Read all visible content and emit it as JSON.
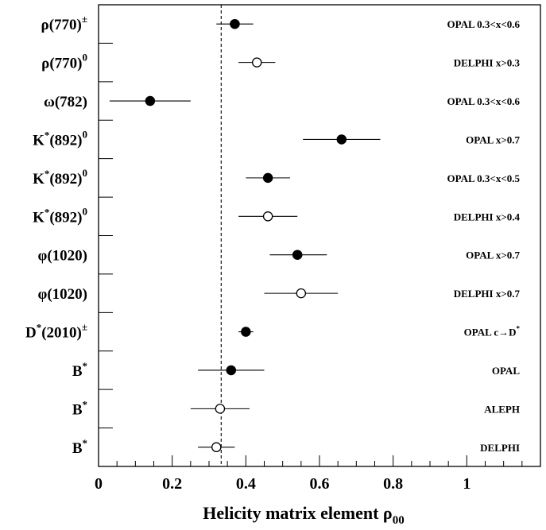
{
  "chart_data": {
    "type": "scatter",
    "orientation": "horizontal-error-bars",
    "xlabel": "Helicity matrix element ρ",
    "xlabel_subscript": "00",
    "xlim": [
      0,
      1.2
    ],
    "xticks": [
      0,
      0.2,
      0.4,
      0.6,
      0.8,
      1
    ],
    "xtick_labels": [
      "0",
      "0.2",
      "0.4",
      "0.6",
      "0.8",
      "1"
    ],
    "reference_line": {
      "x": 0.333,
      "style": "dashed"
    },
    "rows": [
      {
        "particle": "ρ(770)",
        "superscript": "±",
        "experiment": "OPAL 0.3<x<0.6",
        "value": 0.37,
        "err_lo": 0.32,
        "err_hi": 0.42,
        "marker": "filled"
      },
      {
        "particle": "ρ(770)",
        "superscript": "0",
        "experiment": "DELPHI x>0.3",
        "value": 0.43,
        "err_lo": 0.38,
        "err_hi": 0.48,
        "marker": "open"
      },
      {
        "particle": "ω(782)",
        "superscript": "",
        "experiment": "OPAL 0.3<x<0.6",
        "value": 0.14,
        "err_lo": 0.03,
        "err_hi": 0.25,
        "marker": "filled"
      },
      {
        "particle": "K",
        "mid": "*",
        "suffix": "(892)",
        "superscript": "0",
        "experiment": "OPAL x>0.7",
        "value": 0.66,
        "err_lo": 0.555,
        "err_hi": 0.765,
        "marker": "filled"
      },
      {
        "particle": "K",
        "mid": "*",
        "suffix": "(892)",
        "superscript": "0",
        "experiment": "OPAL 0.3<x<0.5",
        "value": 0.46,
        "err_lo": 0.4,
        "err_hi": 0.52,
        "marker": "filled"
      },
      {
        "particle": "K",
        "mid": "*",
        "suffix": "(892)",
        "superscript": "0",
        "experiment": "DELPHI x>0.4",
        "value": 0.46,
        "err_lo": 0.38,
        "err_hi": 0.54,
        "marker": "open"
      },
      {
        "particle": "φ(1020)",
        "superscript": "",
        "experiment": "OPAL x>0.7",
        "value": 0.54,
        "err_lo": 0.465,
        "err_hi": 0.62,
        "marker": "filled"
      },
      {
        "particle": "φ(1020)",
        "superscript": "",
        "experiment": "DELPHI x>0.7",
        "value": 0.55,
        "err_lo": 0.45,
        "err_hi": 0.65,
        "marker": "open"
      },
      {
        "particle": "D",
        "mid": "*",
        "suffix": "(2010)",
        "superscript": "±",
        "experiment": "OPAL c→D",
        "experiment_sup": "*",
        "value": 0.4,
        "err_lo": 0.38,
        "err_hi": 0.42,
        "marker": "filled"
      },
      {
        "particle": "B",
        "mid": "*",
        "suffix": "",
        "superscript": "",
        "experiment": "OPAL",
        "value": 0.36,
        "err_lo": 0.27,
        "err_hi": 0.45,
        "marker": "filled"
      },
      {
        "particle": "B",
        "mid": "*",
        "suffix": "",
        "superscript": "",
        "experiment": "ALEPH",
        "value": 0.33,
        "err_lo": 0.25,
        "err_hi": 0.41,
        "marker": "open"
      },
      {
        "particle": "B",
        "mid": "*",
        "suffix": "",
        "superscript": "",
        "experiment": "DELPHI",
        "value": 0.32,
        "err_lo": 0.27,
        "err_hi": 0.37,
        "marker": "open"
      }
    ],
    "grid": false,
    "legend": "none"
  }
}
